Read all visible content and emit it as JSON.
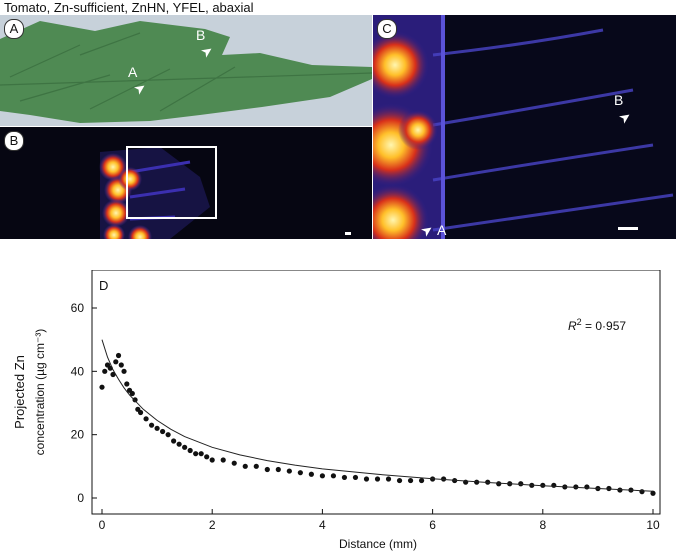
{
  "figure": {
    "title": "Tomato, Zn-sufficient, ZnHN, YFEL, abaxial"
  },
  "panels": {
    "a": {
      "letter": "A",
      "markers": [
        "A",
        "B"
      ]
    },
    "b": {
      "letter": "B"
    },
    "c": {
      "letter": "C",
      "markers": [
        "A",
        "B"
      ]
    },
    "d": {
      "letter": "D"
    }
  },
  "colors": {
    "leaf": "#4f8a53",
    "leaf_background": "#c7d1da",
    "heatmap_dark": "#060612",
    "heatmap_mid": "#3b2fb0",
    "heatmap_hot": "#ffd24a",
    "data_points": "#111111"
  },
  "chart_data": {
    "type": "scatter",
    "panel": "D",
    "xlabel": "Distance (mm)",
    "ylabel_line1": "Projected Zn",
    "ylabel_line2": "concentration (µg cm⁻³)",
    "xlim": [
      0,
      10
    ],
    "ylim": [
      0,
      60
    ],
    "xticks": [
      0,
      2,
      4,
      6,
      8,
      10
    ],
    "yticks": [
      0,
      20,
      40,
      60
    ],
    "annotation": {
      "label": "R",
      "superscript": "2",
      "value": " = 0·957"
    },
    "grid": false,
    "series": [
      {
        "kind": "points",
        "x": [
          0.0,
          0.05,
          0.1,
          0.15,
          0.2,
          0.25,
          0.3,
          0.35,
          0.4,
          0.45,
          0.5,
          0.55,
          0.6,
          0.65,
          0.7,
          0.8,
          0.9,
          1.0,
          1.1,
          1.2,
          1.3,
          1.4,
          1.5,
          1.6,
          1.7,
          1.8,
          1.9,
          2.0,
          2.2,
          2.4,
          2.6,
          2.8,
          3.0,
          3.2,
          3.4,
          3.6,
          3.8,
          4.0,
          4.2,
          4.4,
          4.6,
          4.8,
          5.0,
          5.2,
          5.4,
          5.6,
          5.8,
          6.0,
          6.2,
          6.4,
          6.6,
          6.8,
          7.0,
          7.2,
          7.4,
          7.6,
          7.8,
          8.0,
          8.2,
          8.4,
          8.6,
          8.8,
          9.0,
          9.2,
          9.4,
          9.6,
          9.8,
          10.0
        ],
        "y": [
          35,
          40,
          42,
          41,
          39,
          43,
          45,
          42,
          40,
          36,
          34,
          33,
          31,
          28,
          27,
          25,
          23,
          22,
          21,
          20,
          18,
          17,
          16,
          15,
          14,
          14,
          13,
          12,
          12,
          11,
          10,
          10,
          9,
          9,
          8.5,
          8,
          7.5,
          7,
          7,
          6.5,
          6.5,
          6,
          6,
          6,
          5.5,
          5.5,
          5.5,
          6,
          6,
          5.5,
          5,
          5,
          5,
          4.5,
          4.5,
          4.5,
          4,
          4,
          4,
          3.5,
          3.5,
          3.5,
          3,
          3,
          2.5,
          2.5,
          2,
          1.5
        ]
      },
      {
        "kind": "fit",
        "x": [
          0.0,
          0.1,
          0.2,
          0.3,
          0.4,
          0.5,
          0.75,
          1.0,
          1.25,
          1.5,
          2.0,
          2.5,
          3.0,
          3.5,
          4.0,
          5.0,
          6.0,
          7.0,
          8.0,
          9.0,
          10.0
        ],
        "y": [
          50,
          44.5,
          40.5,
          37.5,
          34.8,
          32.5,
          28.0,
          24.5,
          21.7,
          19.4,
          16.0,
          13.6,
          11.8,
          10.4,
          9.2,
          7.5,
          6.1,
          4.9,
          3.9,
          3.0,
          2.1
        ]
      }
    ]
  }
}
